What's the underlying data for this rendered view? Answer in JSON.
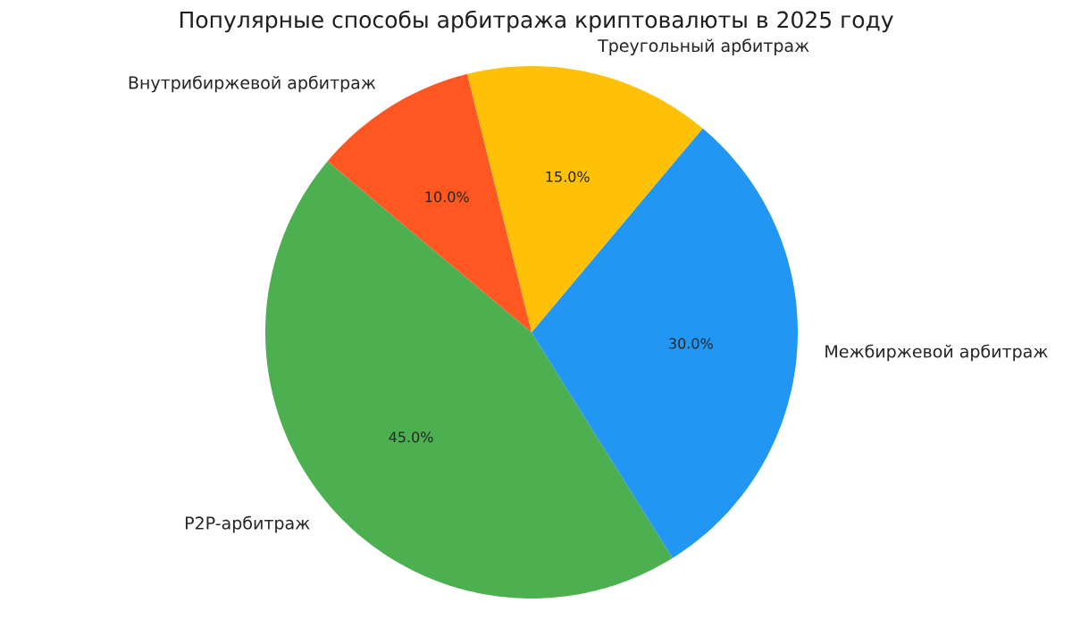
{
  "chart_data": {
    "type": "pie",
    "title": "Популярные способы арбитража криптовалюты в 2025 году",
    "categories": [
      "P2P-арбитраж",
      "Межбиржевой арбитраж",
      "Треугольный арбитраж",
      "Внутрибиржевой арбитраж"
    ],
    "values": [
      45,
      30,
      15,
      10
    ],
    "colors": [
      "#4caf50",
      "#2196f3",
      "#ffc107",
      "#ff5722"
    ],
    "value_labels": [
      "45.0%",
      "30.0%",
      "15.0%",
      "10.0%"
    ]
  }
}
